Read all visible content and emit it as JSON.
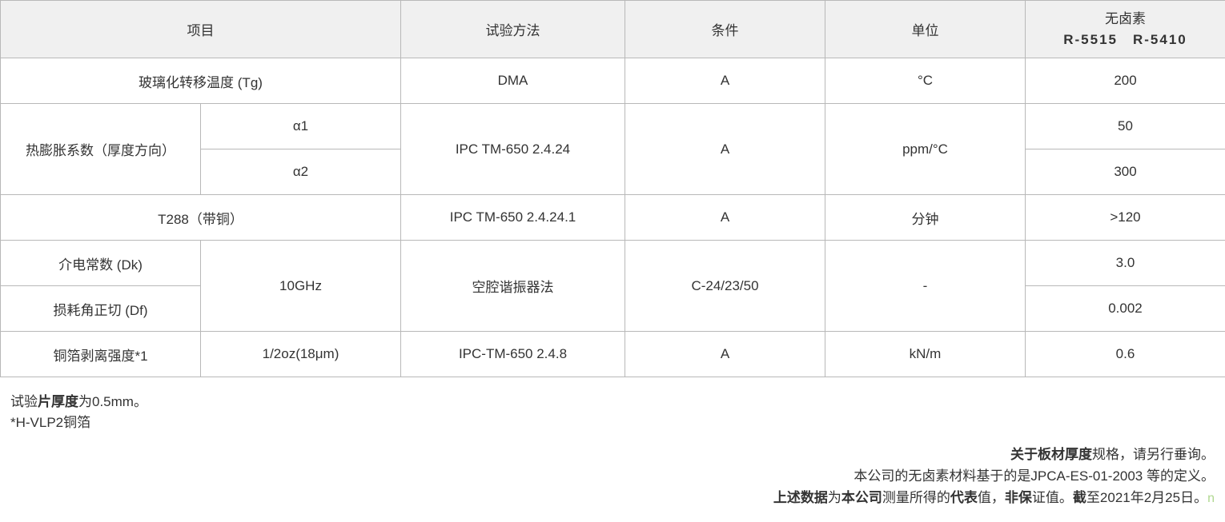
{
  "headers": {
    "item": "项目",
    "method": "试验方法",
    "condition": "条件",
    "unit": "单位",
    "halogen_free_top": "无卤素",
    "halogen_free_bottom": "R-5515　R-5410"
  },
  "rows": {
    "tg": {
      "item": "玻璃化转移温度 (Tg)",
      "method": "DMA",
      "condition": "A",
      "unit": "°C",
      "value": "200"
    },
    "cte": {
      "item_main": "热膨胀系数（厚度方向）",
      "sub1": "α1",
      "sub2": "α2",
      "method": "IPC TM-650 2.4.24",
      "condition": "A",
      "unit": "ppm/°C",
      "value1": "50",
      "value2": "300"
    },
    "t288": {
      "item": "T288（带铜）",
      "method": "IPC TM-650 2.4.24.1",
      "condition": "A",
      "unit": "分钟",
      "value": ">120"
    },
    "dk": {
      "item": "介电常数 (Dk)",
      "freq": "10GHz",
      "method": "空腔谐振器法",
      "condition": "C-24/23/50",
      "unit": "-",
      "value": "3.0"
    },
    "df": {
      "item": "损耗角正切 (Df)",
      "value": "0.002"
    },
    "peel": {
      "item": "铜箔剥离强度*1",
      "spec": "1/2oz(18μm)",
      "method": "IPC-TM-650 2.4.8",
      "condition": "A",
      "unit": "kN/m",
      "value": "0.6"
    }
  },
  "notes": {
    "left1_pre": "试验",
    "left1_bold": "片厚度",
    "left1_post": "为0.5mm。",
    "left2": "*H-VLP2铜箔",
    "right1_bold": "关于板材厚度",
    "right1_post": "规格，请另行垂询。",
    "right2": "本公司的无卤素材料基于的是JPCA-ES-01-2003 等的定义。",
    "right3_bold1": "上述数据",
    "right3_mid1": "为",
    "right3_bold2": "本公司",
    "right3_mid2": "测量所得的",
    "right3_bold3": "代表",
    "right3_mid3": "值，",
    "right3_bold4": "非保",
    "right3_mid4": "证值。",
    "right3_bold5": "截",
    "right3_post": "至2021年2月25日。"
  },
  "watermark": "n"
}
